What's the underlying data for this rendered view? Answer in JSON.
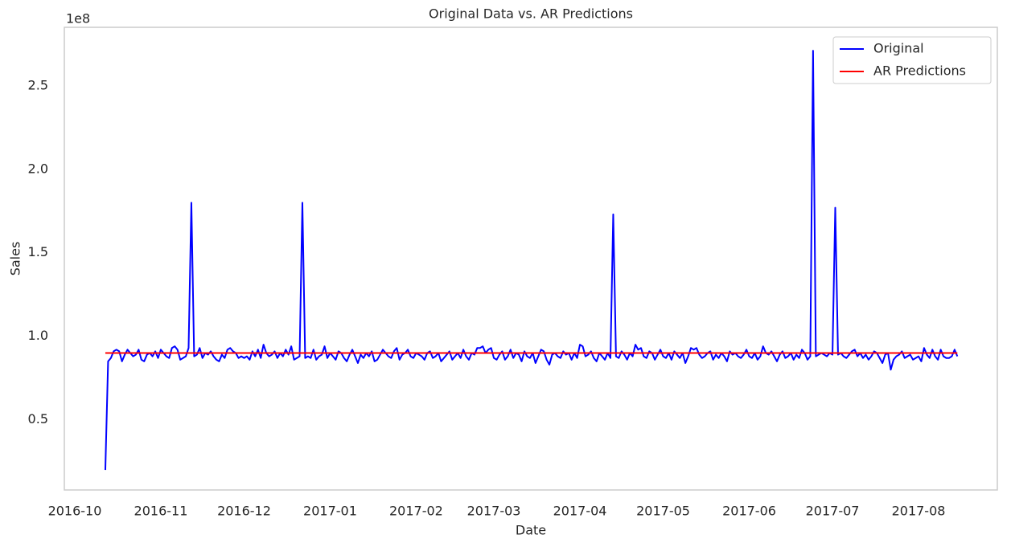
{
  "chart_data": {
    "type": "line",
    "title": "Original Data vs. AR Predictions",
    "x_label": "Date",
    "y_label": "Sales",
    "y_offset_label": "1e8",
    "categories": [
      "2016-10",
      null,
      null,
      null,
      null,
      null,
      null,
      null,
      null,
      null,
      null,
      null,
      null,
      null,
      null,
      null,
      null,
      null,
      null,
      null,
      null,
      null,
      null,
      null,
      null,
      null,
      null,
      null,
      null,
      null,
      null,
      "2016-11",
      null,
      null,
      null,
      null,
      null,
      null,
      null,
      null,
      null,
      null,
      null,
      null,
      null,
      null,
      null,
      null,
      null,
      null,
      null,
      null,
      null,
      null,
      null,
      null,
      null,
      null,
      null,
      null,
      null,
      "2016-12",
      null,
      null,
      null,
      null,
      null,
      null,
      null,
      null,
      null,
      null,
      null,
      null,
      null,
      null,
      null,
      null,
      null,
      null,
      null,
      null,
      null,
      null,
      null,
      null,
      null,
      null,
      null,
      null,
      null,
      null,
      "2017-01",
      null,
      null,
      null,
      null,
      null,
      null,
      null,
      null,
      null,
      null,
      null,
      null,
      null,
      null,
      null,
      null,
      null,
      null,
      null,
      null,
      null,
      null,
      null,
      null,
      null,
      null,
      null,
      null,
      null,
      null,
      "2017-02",
      null,
      null,
      null,
      null,
      null,
      null,
      null,
      null,
      null,
      null,
      null,
      null,
      null,
      null,
      null,
      null,
      null,
      null,
      null,
      null,
      null,
      null,
      null,
      null,
      null,
      null,
      null,
      "2017-03",
      null,
      null,
      null,
      null,
      null,
      null,
      null,
      null,
      null,
      null,
      null,
      null,
      null,
      null,
      null,
      null,
      null,
      null,
      null,
      null,
      null,
      null,
      null,
      null,
      null,
      null,
      null,
      null,
      null,
      null,
      "2017-04",
      null,
      null,
      null,
      null,
      null,
      null,
      null,
      null,
      null,
      null,
      null,
      null,
      null,
      null,
      null,
      null,
      null,
      null,
      null,
      null,
      null,
      null,
      null,
      null,
      null,
      null,
      null,
      null,
      null,
      "2017-05",
      null,
      null,
      null,
      null,
      null,
      null,
      null,
      null,
      null,
      null,
      null,
      null,
      null,
      null,
      null,
      null,
      null,
      null,
      null,
      null,
      null,
      null,
      null,
      null,
      null,
      null,
      null,
      null,
      null,
      null,
      "2017-06",
      null,
      null,
      null,
      null,
      null,
      null,
      null,
      null,
      null,
      null,
      null,
      null,
      null,
      null,
      null,
      null,
      null,
      null,
      null,
      null,
      null,
      null,
      null,
      null,
      null,
      null,
      null,
      null,
      null,
      "2017-07",
      null,
      null,
      null,
      null,
      null,
      null,
      null,
      null,
      null,
      null,
      null,
      null,
      null,
      null,
      null,
      null,
      null,
      null,
      null,
      null,
      null,
      null,
      null,
      null,
      null,
      null,
      null,
      null,
      null,
      null,
      "2017-08",
      null,
      null,
      null,
      null,
      null,
      null,
      null,
      null,
      null,
      null,
      null,
      null,
      null,
      null,
      null,
      null,
      null,
      null
    ],
    "series": [
      {
        "name": "Original",
        "color": "#0000ff",
        "values": [
          null,
          null,
          null,
          null,
          null,
          null,
          null,
          null,
          null,
          null,
          null,
          0.2,
          0.85,
          0.87,
          0.91,
          0.92,
          0.91,
          0.85,
          0.89,
          0.92,
          0.9,
          0.88,
          0.89,
          0.92,
          0.86,
          0.85,
          0.89,
          0.9,
          0.88,
          0.91,
          0.87,
          0.92,
          0.9,
          0.88,
          0.87,
          0.93,
          0.94,
          0.92,
          0.86,
          0.87,
          0.88,
          0.93,
          1.8,
          0.88,
          0.89,
          0.93,
          0.87,
          0.9,
          0.89,
          0.91,
          0.88,
          0.86,
          0.85,
          0.89,
          0.87,
          0.92,
          0.93,
          0.91,
          0.9,
          0.87,
          0.88,
          0.87,
          0.88,
          0.86,
          0.91,
          0.88,
          0.92,
          0.87,
          0.95,
          0.9,
          0.88,
          0.89,
          0.91,
          0.87,
          0.9,
          0.88,
          0.92,
          0.89,
          0.94,
          0.86,
          0.87,
          0.88,
          1.8,
          0.87,
          0.88,
          0.87,
          0.92,
          0.86,
          0.88,
          0.89,
          0.94,
          0.87,
          0.9,
          0.88,
          0.86,
          0.91,
          0.9,
          0.87,
          0.85,
          0.89,
          0.92,
          0.88,
          0.84,
          0.89,
          0.87,
          0.9,
          0.88,
          0.91,
          0.85,
          0.86,
          0.89,
          0.92,
          0.9,
          0.88,
          0.87,
          0.91,
          0.93,
          0.86,
          0.89,
          0.9,
          0.92,
          0.88,
          0.87,
          0.9,
          0.89,
          0.88,
          0.86,
          0.9,
          0.91,
          0.87,
          0.88,
          0.9,
          0.85,
          0.87,
          0.89,
          0.91,
          0.86,
          0.88,
          0.9,
          0.87,
          0.92,
          0.88,
          0.86,
          0.9,
          0.89,
          0.93,
          0.93,
          0.94,
          0.9,
          0.92,
          0.93,
          0.87,
          0.86,
          0.89,
          0.91,
          0.86,
          0.88,
          0.92,
          0.87,
          0.9,
          0.89,
          0.85,
          0.91,
          0.88,
          0.87,
          0.9,
          0.84,
          0.88,
          0.92,
          0.91,
          0.86,
          0.83,
          0.89,
          0.9,
          0.88,
          0.87,
          0.91,
          0.89,
          0.9,
          0.86,
          0.9,
          0.87,
          0.95,
          0.94,
          0.88,
          0.89,
          0.91,
          0.87,
          0.85,
          0.9,
          0.88,
          0.86,
          0.9,
          0.87,
          1.73,
          0.88,
          0.87,
          0.91,
          0.89,
          0.86,
          0.9,
          0.88,
          0.95,
          0.92,
          0.93,
          0.88,
          0.87,
          0.91,
          0.9,
          0.86,
          0.89,
          0.92,
          0.88,
          0.87,
          0.9,
          0.86,
          0.91,
          0.89,
          0.87,
          0.9,
          0.84,
          0.88,
          0.93,
          0.92,
          0.93,
          0.89,
          0.87,
          0.88,
          0.9,
          0.91,
          0.86,
          0.89,
          0.87,
          0.9,
          0.88,
          0.85,
          0.91,
          0.89,
          0.9,
          0.88,
          0.87,
          0.89,
          0.92,
          0.88,
          0.87,
          0.9,
          0.86,
          0.88,
          0.94,
          0.9,
          0.89,
          0.91,
          0.88,
          0.85,
          0.89,
          0.91,
          0.87,
          0.88,
          0.9,
          0.86,
          0.89,
          0.87,
          0.92,
          0.9,
          0.86,
          0.88,
          2.71,
          0.88,
          0.89,
          0.9,
          0.89,
          0.88,
          0.9,
          0.89,
          1.77,
          0.89,
          0.9,
          0.88,
          0.87,
          0.89,
          0.91,
          0.92,
          0.88,
          0.9,
          0.87,
          0.89,
          0.86,
          0.88,
          0.91,
          0.9,
          0.87,
          0.84,
          0.89,
          0.9,
          0.8,
          0.86,
          0.88,
          0.89,
          0.91,
          0.87,
          0.88,
          0.89,
          0.86,
          0.87,
          0.88,
          0.85,
          0.93,
          0.89,
          0.87,
          0.92,
          0.88,
          0.86,
          0.92,
          0.88,
          0.87,
          0.87,
          0.88,
          0.92,
          0.88,
          null,
          null,
          null,
          null
        ]
      },
      {
        "name": "AR Predictions",
        "color": "#ff0000",
        "values": [
          null,
          null,
          null,
          null,
          null,
          null,
          null,
          null,
          null,
          null,
          null,
          0.9,
          0.9,
          0.9,
          0.9,
          0.9,
          0.9,
          0.9,
          0.9,
          0.9,
          0.9,
          0.9,
          0.9,
          0.9,
          0.9,
          0.9,
          0.9,
          0.9,
          0.9,
          0.9,
          0.9,
          0.9,
          0.9,
          0.9,
          0.9,
          0.9,
          0.9,
          0.9,
          0.9,
          0.9,
          0.9,
          0.9,
          0.9,
          0.9,
          0.9,
          0.9,
          0.9,
          0.9,
          0.9,
          0.9,
          0.9,
          0.9,
          0.9,
          0.9,
          0.9,
          0.9,
          0.9,
          0.9,
          0.9,
          0.9,
          0.9,
          0.9,
          0.9,
          0.9,
          0.9,
          0.9,
          0.9,
          0.9,
          0.9,
          0.9,
          0.9,
          0.9,
          0.9,
          0.9,
          0.9,
          0.9,
          0.9,
          0.9,
          0.9,
          0.9,
          0.9,
          0.9,
          0.9,
          0.9,
          0.9,
          0.9,
          0.9,
          0.9,
          0.9,
          0.9,
          0.9,
          0.9,
          0.9,
          0.9,
          0.9,
          0.9,
          0.9,
          0.9,
          0.9,
          0.9,
          0.9,
          0.9,
          0.9,
          0.9,
          0.9,
          0.9,
          0.9,
          0.9,
          0.9,
          0.9,
          0.9,
          0.9,
          0.9,
          0.9,
          0.9,
          0.9,
          0.9,
          0.9,
          0.9,
          0.9,
          0.9,
          0.9,
          0.9,
          0.9,
          0.9,
          0.9,
          0.9,
          0.9,
          0.9,
          0.9,
          0.9,
          0.9,
          0.9,
          0.9,
          0.9,
          0.9,
          0.9,
          0.9,
          0.9,
          0.9,
          0.9,
          0.9,
          0.9,
          0.9,
          0.9,
          0.9,
          0.9,
          0.9,
          0.9,
          0.9,
          0.9,
          0.9,
          0.9,
          0.9,
          0.9,
          0.9,
          0.9,
          0.9,
          0.9,
          0.9,
          0.9,
          0.9,
          0.9,
          0.9,
          0.9,
          0.9,
          0.9,
          0.9,
          0.9,
          0.9,
          0.9,
          0.9,
          0.9,
          0.9,
          0.9,
          0.9,
          0.9,
          0.9,
          0.9,
          0.9,
          0.9,
          0.9,
          0.9,
          0.9,
          0.9,
          0.9,
          0.9,
          0.9,
          0.9,
          0.9,
          0.9,
          0.9,
          0.9,
          0.9,
          0.9,
          0.9,
          0.9,
          0.9,
          0.9,
          0.9,
          0.9,
          0.9,
          0.9,
          0.9,
          0.9,
          0.9,
          0.9,
          0.9,
          0.9,
          0.9,
          0.9,
          0.9,
          0.9,
          0.9,
          0.9,
          0.9,
          0.9,
          0.9,
          0.9,
          0.9,
          0.9,
          0.9,
          0.9,
          0.9,
          0.9,
          0.9,
          0.9,
          0.9,
          0.9,
          0.9,
          0.9,
          0.9,
          0.9,
          0.9,
          0.9,
          0.9,
          0.9,
          0.9,
          0.9,
          0.9,
          0.9,
          0.9,
          0.9,
          0.9,
          0.9,
          0.9,
          0.9,
          0.9,
          0.9,
          0.9,
          0.9,
          0.9,
          0.9,
          0.9,
          0.9,
          0.9,
          0.9,
          0.9,
          0.9,
          0.9,
          0.9,
          0.9,
          0.9,
          0.9,
          0.9,
          0.9,
          0.9,
          0.9,
          0.9,
          0.9,
          0.9,
          0.9,
          0.9,
          0.9,
          0.9,
          0.9,
          0.9,
          0.9,
          0.9,
          0.9,
          0.9,
          0.9,
          0.9,
          0.9,
          0.9,
          0.9,
          0.9,
          0.9,
          0.9,
          0.9,
          0.9,
          0.9,
          0.9,
          0.9,
          0.9,
          0.9,
          0.9,
          0.9,
          0.9,
          0.9,
          0.9,
          0.9,
          0.9,
          0.9,
          0.9,
          0.9,
          0.9,
          0.9,
          0.9,
          0.9,
          0.9,
          0.9,
          0.9,
          0.9,
          0.9,
          0.9,
          0.9,
          0.9,
          0.9,
          null,
          null,
          null,
          null
        ]
      }
    ],
    "ylim": [
      0.08,
      2.85
    ],
    "yticks": [
      0.5,
      {
        "value": 1,
        "label": "1.0"
      },
      1.5,
      {
        "value": 2,
        "label": "2.0"
      },
      2.5
    ],
    "grid": false,
    "legend": "upper right"
  }
}
